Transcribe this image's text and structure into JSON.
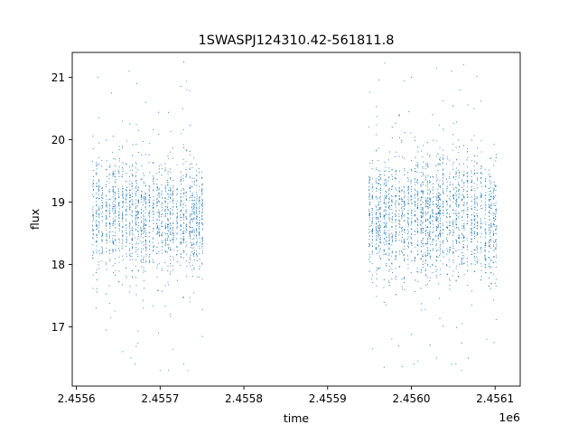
{
  "chart_data": {
    "type": "scatter",
    "title": "1SWASPJ124310.42-561811.8",
    "xlabel": "time",
    "ylabel": "flux",
    "x_offset_label": "1e6",
    "xlim": [
      2455595.0,
      2456130.0
    ],
    "ylim": [
      16.05,
      21.4
    ],
    "xticks": [
      {
        "value": 2455600,
        "label": "2.4556"
      },
      {
        "value": 2455700,
        "label": "2.4557"
      },
      {
        "value": 2455800,
        "label": "2.4558"
      },
      {
        "value": 2455900,
        "label": "2.4559"
      },
      {
        "value": 2456000,
        "label": "2.4560"
      },
      {
        "value": 2456100,
        "label": "2.4561"
      }
    ],
    "yticks": [
      {
        "value": 17,
        "label": "17"
      },
      {
        "value": 18,
        "label": "18"
      },
      {
        "value": 19,
        "label": "19"
      },
      {
        "value": 20,
        "label": "20"
      },
      {
        "value": 21,
        "label": "21"
      }
    ],
    "grid": false,
    "marker_color": "#1f77b4",
    "series": [
      {
        "segments": [
          {
            "x_start": 2455620,
            "x_end": 2455753,
            "center": 18.75,
            "spread": 0.45,
            "count": 1700
          },
          {
            "x_start": 2455950,
            "x_end": 2456105,
            "center": 18.75,
            "spread": 0.5,
            "count": 2300
          }
        ],
        "points": [
          {
            "x": 2455626,
            "y": 21.0
          },
          {
            "x": 2455642,
            "y": 20.75
          },
          {
            "x": 2455655,
            "y": 20.3
          },
          {
            "x": 2455663,
            "y": 21.1
          },
          {
            "x": 2455672,
            "y": 20.9
          },
          {
            "x": 2455683,
            "y": 20.6
          },
          {
            "x": 2455727,
            "y": 20.5
          },
          {
            "x": 2455732,
            "y": 20.8
          },
          {
            "x": 2455641,
            "y": 17.15
          },
          {
            "x": 2455665,
            "y": 16.5
          },
          {
            "x": 2455670,
            "y": 16.4
          },
          {
            "x": 2455698,
            "y": 16.9
          },
          {
            "x": 2455700,
            "y": 16.3
          },
          {
            "x": 2455710,
            "y": 16.3
          },
          {
            "x": 2455728,
            "y": 16.4
          },
          {
            "x": 2455733,
            "y": 16.3
          },
          {
            "x": 2456000,
            "y": 21.0
          },
          {
            "x": 2456030,
            "y": 21.15
          },
          {
            "x": 2456048,
            "y": 21.1
          },
          {
            "x": 2456058,
            "y": 20.8
          },
          {
            "x": 2456075,
            "y": 20.5
          },
          {
            "x": 2455997,
            "y": 20.45
          },
          {
            "x": 2456003,
            "y": 16.4
          },
          {
            "x": 2456030,
            "y": 16.5
          },
          {
            "x": 2456048,
            "y": 16.4
          },
          {
            "x": 2456060,
            "y": 16.3
          },
          {
            "x": 2456068,
            "y": 16.5
          },
          {
            "x": 2456090,
            "y": 16.8
          }
        ]
      }
    ]
  }
}
